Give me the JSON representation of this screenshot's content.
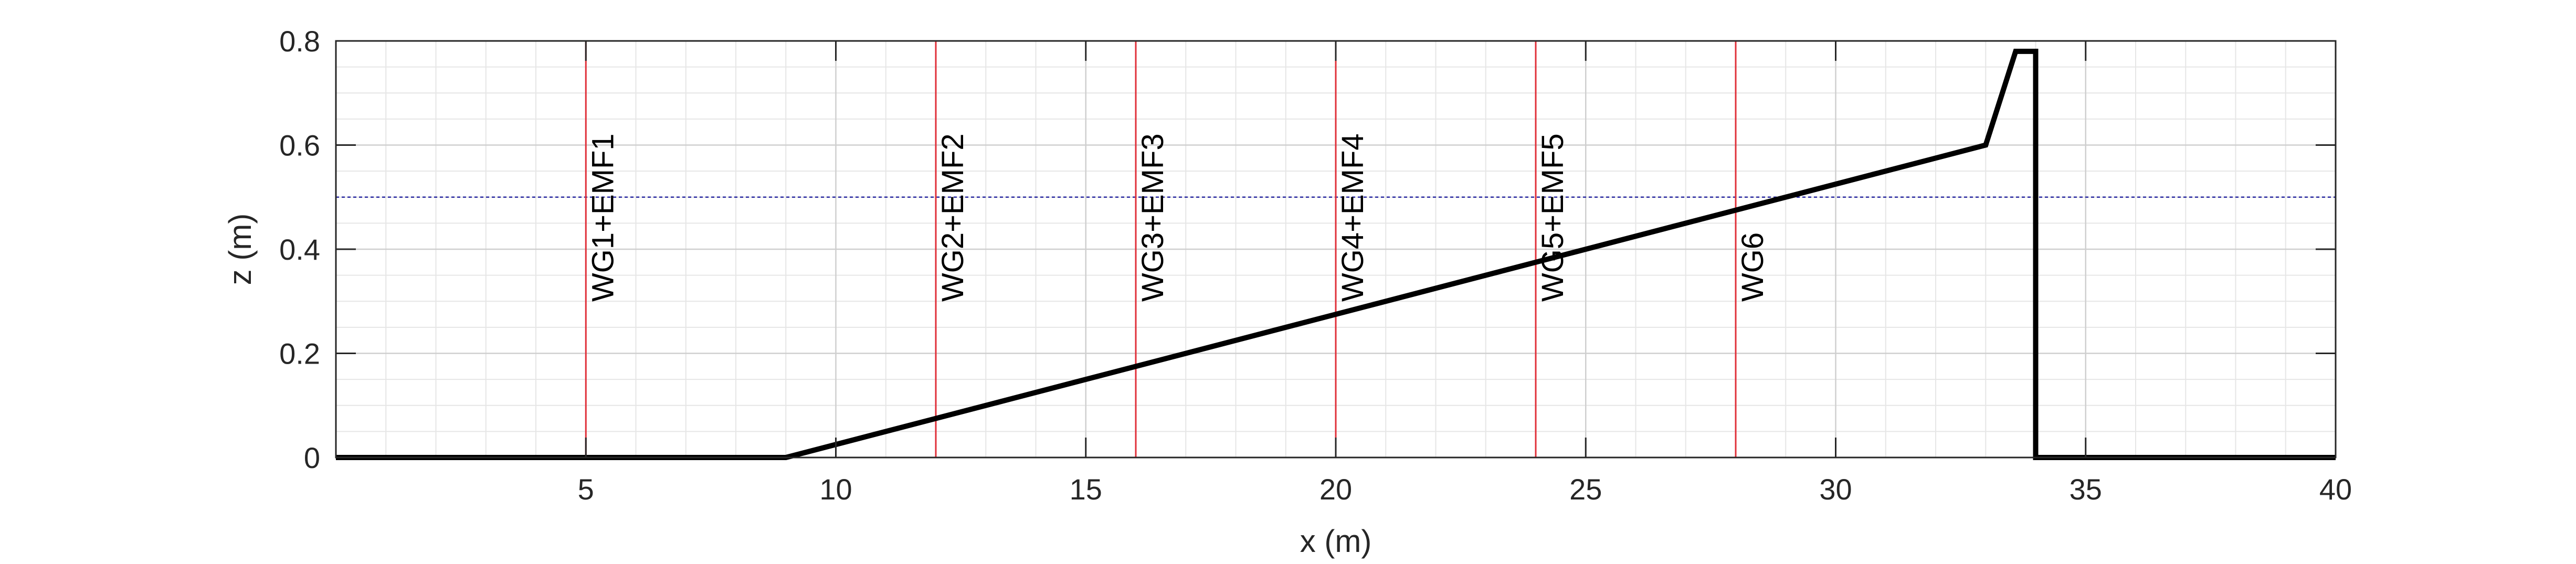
{
  "chart_data": {
    "type": "line",
    "xlabel": "x (m)",
    "ylabel": "z (m)",
    "xlim": [
      0,
      40
    ],
    "ylim": [
      0,
      0.8
    ],
    "xticks": [
      5,
      10,
      15,
      20,
      25,
      30,
      35,
      40
    ],
    "yticks": [
      0,
      0.2,
      0.4,
      0.6,
      0.8
    ],
    "xtick_labels": [
      "5",
      "10",
      "15",
      "20",
      "25",
      "30",
      "35",
      "40"
    ],
    "ytick_labels": [
      "0",
      "0.2",
      "0.4",
      "0.6",
      "0.8"
    ],
    "grid": true,
    "minor_grid": true,
    "series": [
      {
        "role": "bathymetry profile",
        "color": "#000000",
        "x": [
          0,
          9,
          33,
          33.6,
          34.0,
          34.0,
          34.0,
          40
        ],
        "y": [
          0,
          0,
          0.6,
          0.78,
          0.78,
          0.0,
          0.0,
          0.0
        ]
      }
    ],
    "water_level": {
      "z": 0.5,
      "color": "#2a2aa0",
      "style": "dotted"
    },
    "gauges": [
      {
        "x": 5,
        "label": "WG1+EMF1"
      },
      {
        "x": 12,
        "label": "WG2+EMF2"
      },
      {
        "x": 16,
        "label": "WG3+EMF3"
      },
      {
        "x": 20,
        "label": "WG4+EMF4"
      },
      {
        "x": 24,
        "label": "WG5+EMF5"
      },
      {
        "x": 28,
        "label": "WG6"
      }
    ],
    "gauge_color": "#e0303a"
  }
}
